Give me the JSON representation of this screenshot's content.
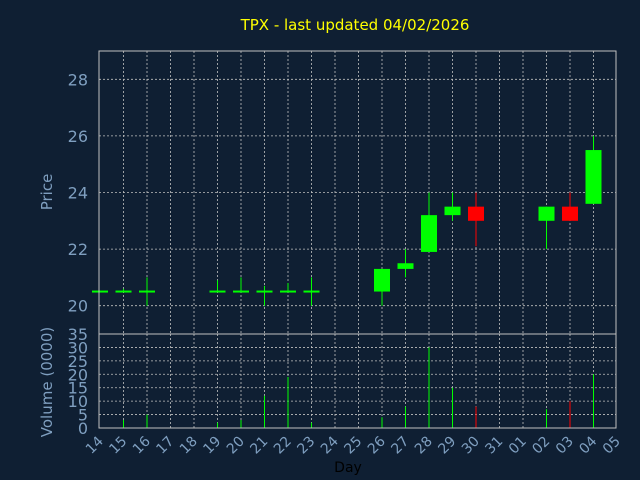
{
  "chart_data": {
    "type": "candlestick",
    "title": "TPX - last updated 04/02/2026",
    "xlabel": "Day",
    "grid": true,
    "colors": {
      "background": "#0f1f33",
      "frame": "#c0c0c0",
      "grid": "#c0c0c0",
      "title": "#ffff00",
      "axis_text": "#7f9fc0",
      "up": "#00ff00",
      "down": "#ff0000"
    },
    "x_ticks": [
      "14",
      "15",
      "16",
      "17",
      "18",
      "19",
      "20",
      "21",
      "22",
      "23",
      "24",
      "25",
      "26",
      "27",
      "28",
      "29",
      "30",
      "31",
      "01",
      "02",
      "03",
      "04",
      "05"
    ],
    "price_panel": {
      "ylabel": "Price",
      "ylim": [
        19.0,
        29.0
      ],
      "yticks": [
        "20",
        "22",
        "24",
        "26",
        "28"
      ]
    },
    "volume_panel": {
      "ylabel": "Volume (0000)",
      "ylim": [
        0,
        35
      ],
      "yticks": [
        "0",
        "5",
        "10",
        "15",
        "20",
        "25",
        "30",
        "35"
      ]
    },
    "candles": [
      {
        "day": "14",
        "open": 20.5,
        "high": 20.5,
        "low": 20.5,
        "close": 20.5,
        "volume": 0
      },
      {
        "day": "15",
        "open": 20.5,
        "high": 20.6,
        "low": 20.5,
        "close": 20.5,
        "volume": 3
      },
      {
        "day": "16",
        "open": 20.5,
        "high": 21.0,
        "low": 20.0,
        "close": 20.5,
        "volume": 5
      },
      {
        "day": "19",
        "open": 20.5,
        "high": 20.9,
        "low": 20.5,
        "close": 20.5,
        "volume": 2
      },
      {
        "day": "20",
        "open": 20.5,
        "high": 21.0,
        "low": 20.5,
        "close": 20.5,
        "volume": 3
      },
      {
        "day": "21",
        "open": 20.5,
        "high": 20.7,
        "low": 20.0,
        "close": 20.5,
        "volume": 12
      },
      {
        "day": "22",
        "open": 20.5,
        "high": 20.8,
        "low": 20.5,
        "close": 20.5,
        "volume": 19
      },
      {
        "day": "23",
        "open": 20.5,
        "high": 21.0,
        "low": 20.0,
        "close": 20.5,
        "volume": 2
      },
      {
        "day": "26",
        "open": 20.5,
        "high": 21.3,
        "low": 20.0,
        "close": 21.3,
        "volume": 4
      },
      {
        "day": "27",
        "open": 21.3,
        "high": 22.0,
        "low": 21.0,
        "close": 21.5,
        "volume": 8
      },
      {
        "day": "28",
        "open": 21.9,
        "high": 24.0,
        "low": 21.9,
        "close": 23.2,
        "volume": 30
      },
      {
        "day": "29",
        "open": 23.2,
        "high": 24.0,
        "low": 23.0,
        "close": 23.5,
        "volume": 15
      },
      {
        "day": "30",
        "open": 23.5,
        "high": 24.0,
        "low": 22.1,
        "close": 23.0,
        "volume": 8
      },
      {
        "day": "02",
        "open": 23.0,
        "high": 23.5,
        "low": 22.0,
        "close": 23.5,
        "volume": 7
      },
      {
        "day": "03",
        "open": 23.5,
        "high": 24.0,
        "low": 23.0,
        "close": 23.0,
        "volume": 10
      },
      {
        "day": "04",
        "open": 23.6,
        "high": 26.0,
        "low": 23.6,
        "close": 25.5,
        "volume": 20
      }
    ]
  }
}
